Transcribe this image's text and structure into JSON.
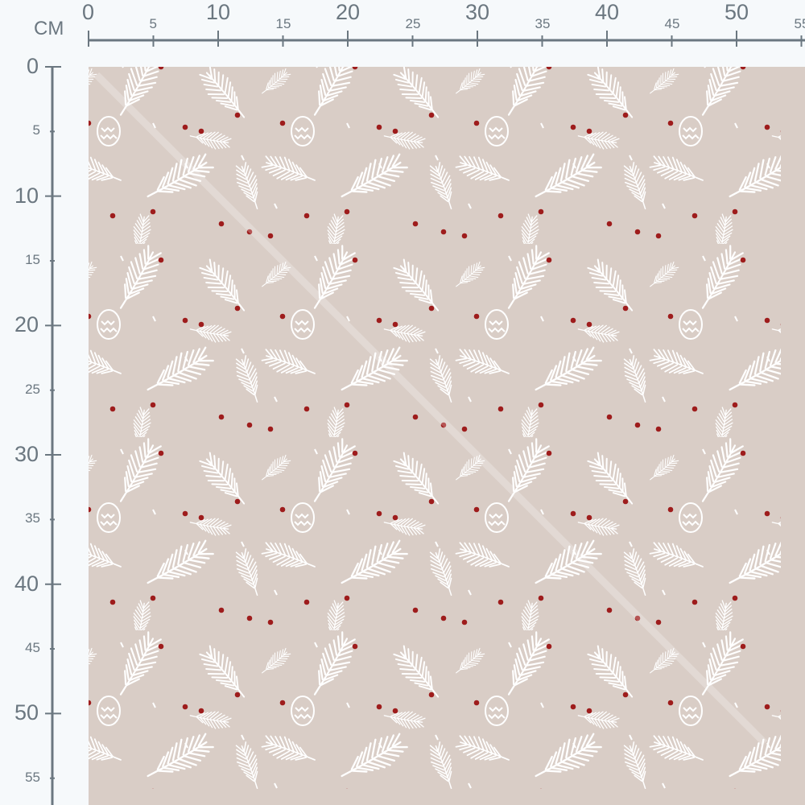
{
  "unit_label": "CM",
  "ruler_top": {
    "ticks": [
      0,
      5,
      10,
      15,
      20,
      25,
      30,
      35,
      40,
      45,
      50,
      55
    ]
  },
  "ruler_left": {
    "ticks": [
      0,
      5,
      10,
      15,
      20,
      25,
      30,
      35,
      40,
      45,
      50,
      55
    ]
  },
  "fabric": {
    "background_color": "#d9cdc6",
    "motif_color": "#ffffff",
    "berry_color": "#9e1c1c",
    "motifs": [
      "pine-branch-icon",
      "pine-cone-icon",
      "berry-dot"
    ]
  },
  "colors": {
    "ruler": "#6b7780",
    "ruler_bg": "#f6f9fb"
  }
}
